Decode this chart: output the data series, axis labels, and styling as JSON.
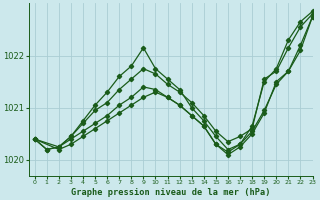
{
  "title": "Graphe pression niveau de la mer (hPa)",
  "background_color": "#cce8ec",
  "grid_color": "#aacdd4",
  "line_color": "#1a5c1a",
  "xlim": [
    -0.5,
    23
  ],
  "ylim": [
    1019.7,
    1023.0
  ],
  "xticks": [
    0,
    1,
    2,
    3,
    4,
    5,
    6,
    7,
    8,
    9,
    10,
    11,
    12,
    13,
    14,
    15,
    16,
    17,
    18,
    19,
    20,
    21,
    22,
    23
  ],
  "yticks": [
    1020,
    1021,
    1022
  ],
  "series": [
    {
      "x": [
        0,
        1,
        2,
        3,
        4,
        5,
        6,
        7,
        8,
        9,
        10,
        11,
        12,
        13,
        14,
        15,
        16,
        17,
        18,
        19,
        20,
        21,
        22,
        23
      ],
      "y": [
        1020.4,
        1020.2,
        1020.25,
        1020.45,
        1020.7,
        1020.95,
        1021.1,
        1021.35,
        1021.55,
        1021.75,
        1021.65,
        1021.45,
        1021.3,
        1021.1,
        1020.85,
        1020.55,
        1020.35,
        1020.45,
        1020.6,
        1021.55,
        1021.7,
        1022.15,
        1022.55,
        1022.8
      ]
    },
    {
      "x": [
        0,
        1,
        2,
        3,
        4,
        5,
        6,
        7,
        8,
        9,
        10,
        11,
        12,
        13,
        14,
        15,
        16,
        17,
        18,
        19,
        20,
        21,
        22,
        23
      ],
      "y": [
        1020.4,
        1020.2,
        1020.25,
        1020.45,
        1020.75,
        1021.05,
        1021.3,
        1021.6,
        1021.8,
        1022.15,
        1021.75,
        1021.55,
        1021.35,
        1021.0,
        1020.75,
        1020.45,
        1020.2,
        1020.3,
        1020.65,
        1021.5,
        1021.75,
        1022.3,
        1022.65,
        1022.85
      ]
    },
    {
      "x": [
        0,
        2,
        3,
        4,
        5,
        6,
        7,
        8,
        9,
        10,
        11,
        12,
        13,
        14,
        15,
        16,
        17,
        18,
        19,
        20,
        21,
        22,
        23
      ],
      "y": [
        1020.4,
        1020.25,
        1020.4,
        1020.55,
        1020.7,
        1020.85,
        1021.05,
        1021.2,
        1021.4,
        1021.35,
        1021.2,
        1021.05,
        1020.85,
        1020.65,
        1020.3,
        1020.15,
        1020.3,
        1020.55,
        1020.95,
        1021.45,
        1021.7,
        1022.2,
        1022.75
      ]
    },
    {
      "x": [
        0,
        2,
        3,
        4,
        5,
        6,
        7,
        8,
        9,
        10,
        11,
        12,
        13,
        14,
        15,
        16,
        17,
        18,
        19,
        20,
        21,
        22,
        23
      ],
      "y": [
        1020.4,
        1020.2,
        1020.3,
        1020.45,
        1020.6,
        1020.75,
        1020.9,
        1021.05,
        1021.2,
        1021.3,
        1021.2,
        1021.05,
        1020.85,
        1020.65,
        1020.3,
        1020.1,
        1020.25,
        1020.5,
        1020.9,
        1021.5,
        1021.7,
        1022.1,
        1022.75
      ]
    }
  ]
}
